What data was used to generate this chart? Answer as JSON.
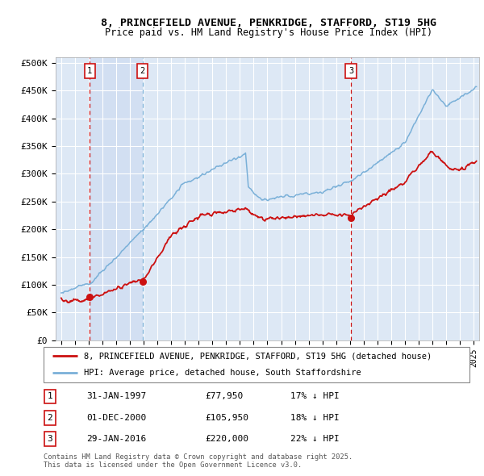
{
  "title_line1": "8, PRINCEFIELD AVENUE, PENKRIDGE, STAFFORD, ST19 5HG",
  "title_line2": "Price paid vs. HM Land Registry's House Price Index (HPI)",
  "background_color": "#dde8f5",
  "hpi_color": "#7ab0d8",
  "price_color": "#cc1111",
  "ylim": [
    0,
    510000
  ],
  "yticks": [
    0,
    50000,
    100000,
    150000,
    200000,
    250000,
    300000,
    350000,
    400000,
    450000,
    500000
  ],
  "ytick_labels": [
    "£0",
    "£50K",
    "£100K",
    "£150K",
    "£200K",
    "£250K",
    "£300K",
    "£350K",
    "£400K",
    "£450K",
    "£500K"
  ],
  "sale_dates": [
    1997.08,
    2000.92,
    2016.08
  ],
  "sale_prices": [
    77950,
    105950,
    220000
  ],
  "sale_labels": [
    "1",
    "2",
    "3"
  ],
  "legend_line1": "8, PRINCEFIELD AVENUE, PENKRIDGE, STAFFORD, ST19 5HG (detached house)",
  "legend_line2": "HPI: Average price, detached house, South Staffordshire",
  "table_entries": [
    {
      "num": "1",
      "date": "31-JAN-1997",
      "price": "£77,950",
      "hpi": "17% ↓ HPI"
    },
    {
      "num": "2",
      "date": "01-DEC-2000",
      "price": "£105,950",
      "hpi": "18% ↓ HPI"
    },
    {
      "num": "3",
      "date": "29-JAN-2016",
      "price": "£220,000",
      "hpi": "22% ↓ HPI"
    }
  ],
  "footnote": "Contains HM Land Registry data © Crown copyright and database right 2025.\nThis data is licensed under the Open Government Licence v3.0.",
  "xmin": 1994.6,
  "xmax": 2025.4
}
